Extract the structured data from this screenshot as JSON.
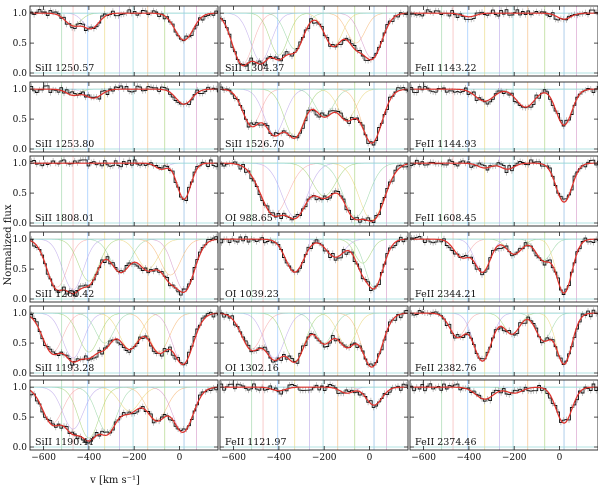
{
  "chart_data": {
    "type": "line",
    "ylabel": "Normalized flux",
    "xlabel": "v [km s⁻¹]",
    "xlim": [
      -660,
      170
    ],
    "ylim": [
      -0.05,
      1.12
    ],
    "x_ticks": [
      -600,
      -400,
      -200,
      0
    ],
    "y_ticks": [
      "0.0",
      "0.5",
      "1.0"
    ],
    "layout": {
      "rows": 6,
      "cols": 3
    },
    "component_velocities": [
      -520,
      -470,
      -405,
      -330,
      -265,
      -205,
      -140,
      -65,
      20,
      75
    ],
    "component_colors": [
      "#8fd19e",
      "#f4a3a3",
      "#7fb8ff",
      "#e7d36f",
      "#b7a0e8",
      "#86d0d8",
      "#f5b26b",
      "#9ecf6e",
      "#6fa8dc",
      "#d28fc6"
    ],
    "colors": {
      "model": "#e0302a",
      "data": "#111111",
      "error": "#999999",
      "ref_line": "#bfe6e6"
    },
    "panels": [
      {
        "label": "SiII 1250.57",
        "row": 0,
        "col": 0,
        "absorbers": [
          [
            20,
            0.45,
            40
          ],
          [
            -390,
            0.25,
            35
          ],
          [
            -470,
            0.2,
            35
          ]
        ]
      },
      {
        "label": "SiII 1304.37",
        "row": 0,
        "col": 1,
        "absorbers": [
          [
            -560,
            0.85,
            45
          ],
          [
            -480,
            0.8,
            45
          ],
          [
            -400,
            0.7,
            40
          ],
          [
            -330,
            0.6,
            40
          ],
          [
            -160,
            0.55,
            40
          ],
          [
            -60,
            0.5,
            40
          ],
          [
            10,
            0.75,
            45
          ]
        ]
      },
      {
        "label": "FeII 1143.22",
        "row": 0,
        "col": 2,
        "absorbers": [
          [
            20,
            0.1,
            30
          ],
          [
            -400,
            0.06,
            30
          ]
        ]
      },
      {
        "label": "SiII 1253.80",
        "row": 1,
        "col": 0,
        "absorbers": [
          [
            20,
            0.25,
            35
          ],
          [
            -380,
            0.15,
            35
          ],
          [
            -470,
            0.1,
            30
          ]
        ]
      },
      {
        "label": "SiII 1526.70",
        "row": 1,
        "col": 1,
        "absorbers": [
          [
            -520,
            0.6,
            40
          ],
          [
            -420,
            0.75,
            45
          ],
          [
            -330,
            0.8,
            45
          ],
          [
            -200,
            0.45,
            40
          ],
          [
            -100,
            0.5,
            40
          ],
          [
            10,
            0.9,
            45
          ]
        ]
      },
      {
        "label": "FeII 1144.93",
        "row": 1,
        "col": 2,
        "absorbers": [
          [
            20,
            0.6,
            35
          ],
          [
            -150,
            0.3,
            40
          ],
          [
            -330,
            0.2,
            40
          ]
        ]
      },
      {
        "label": "SiII 1808.01",
        "row": 2,
        "col": 0,
        "absorbers": [
          [
            20,
            0.6,
            30
          ],
          [
            -80,
            0.1,
            25
          ]
        ]
      },
      {
        "label": "OI 988.65",
        "row": 2,
        "col": 1,
        "absorbers": [
          [
            -420,
            0.85,
            60
          ],
          [
            -330,
            0.9,
            55
          ],
          [
            -200,
            0.55,
            50
          ],
          [
            -60,
            0.9,
            55
          ],
          [
            10,
            0.95,
            55
          ]
        ]
      },
      {
        "label": "FeII 1608.45",
        "row": 2,
        "col": 2,
        "absorbers": [
          [
            20,
            0.65,
            35
          ],
          [
            -230,
            0.1,
            30
          ],
          [
            -330,
            0.08,
            30
          ]
        ]
      },
      {
        "label": "SiII 1260.42",
        "row": 3,
        "col": 0,
        "absorbers": [
          [
            -540,
            0.8,
            45
          ],
          [
            -470,
            0.85,
            45
          ],
          [
            -400,
            0.7,
            45
          ],
          [
            -260,
            0.55,
            45
          ],
          [
            -140,
            0.5,
            45
          ],
          [
            -40,
            0.6,
            45
          ],
          [
            20,
            0.85,
            45
          ]
        ]
      },
      {
        "label": "OI 1039.23",
        "row": 3,
        "col": 1,
        "absorbers": [
          [
            -330,
            0.55,
            40
          ],
          [
            -150,
            0.3,
            40
          ],
          [
            -30,
            0.4,
            35
          ],
          [
            20,
            0.8,
            40
          ]
        ]
      },
      {
        "label": "FeII 2344.21",
        "row": 3,
        "col": 2,
        "absorbers": [
          [
            -430,
            0.3,
            35
          ],
          [
            -340,
            0.55,
            35
          ],
          [
            -200,
            0.25,
            35
          ],
          [
            -70,
            0.35,
            35
          ],
          [
            20,
            0.9,
            35
          ]
        ]
      },
      {
        "label": "SiII 1193.28",
        "row": 4,
        "col": 0,
        "absorbers": [
          [
            -560,
            0.65,
            45
          ],
          [
            -470,
            0.75,
            45
          ],
          [
            -400,
            0.65,
            45
          ],
          [
            -330,
            0.5,
            40
          ],
          [
            -220,
            0.6,
            45
          ],
          [
            -90,
            0.65,
            45
          ],
          [
            15,
            0.85,
            45
          ]
        ]
      },
      {
        "label": "OI 1302.16",
        "row": 4,
        "col": 1,
        "absorbers": [
          [
            -520,
            0.6,
            45
          ],
          [
            -420,
            0.75,
            45
          ],
          [
            -330,
            0.8,
            45
          ],
          [
            -200,
            0.5,
            40
          ],
          [
            -100,
            0.55,
            40
          ],
          [
            10,
            0.9,
            45
          ]
        ]
      },
      {
        "label": "FeII 2382.76",
        "row": 4,
        "col": 2,
        "absorbers": [
          [
            -450,
            0.4,
            35
          ],
          [
            -340,
            0.8,
            40
          ],
          [
            -210,
            0.35,
            35
          ],
          [
            -70,
            0.45,
            35
          ],
          [
            20,
            0.85,
            35
          ]
        ]
      },
      {
        "label": "SiII 1190.41",
        "row": 5,
        "col": 0,
        "absorbers": [
          [
            -560,
            0.6,
            45
          ],
          [
            -470,
            0.7,
            45
          ],
          [
            -400,
            0.85,
            45
          ],
          [
            -320,
            0.75,
            45
          ],
          [
            -220,
            0.4,
            45
          ],
          [
            -100,
            0.55,
            45
          ],
          [
            15,
            0.75,
            45
          ]
        ]
      },
      {
        "label": "FeII 1121.97",
        "row": 5,
        "col": 1,
        "absorbers": [
          [
            20,
            0.3,
            35
          ],
          [
            -100,
            0.1,
            30
          ],
          [
            -400,
            0.06,
            30
          ]
        ]
      },
      {
        "label": "FeII 2374.46",
        "row": 5,
        "col": 2,
        "absorbers": [
          [
            20,
            0.6,
            35
          ],
          [
            -330,
            0.2,
            40
          ],
          [
            -200,
            0.1,
            35
          ]
        ]
      }
    ]
  }
}
